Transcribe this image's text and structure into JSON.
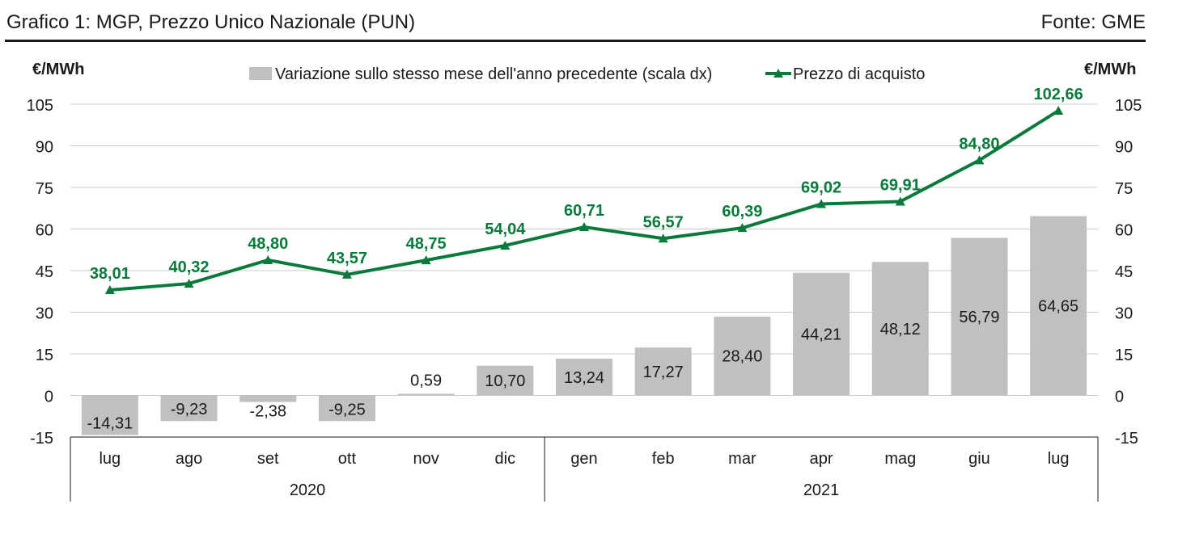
{
  "header": {
    "title": "Grafico 1: MGP, Prezzo Unico Nazionale (PUN)",
    "source": "Fonte: GME"
  },
  "chart_data": {
    "type": "bar",
    "categories": [
      "lug",
      "ago",
      "set",
      "ott",
      "nov",
      "dic",
      "gen",
      "feb",
      "mar",
      "apr",
      "mag",
      "giu",
      "lug"
    ],
    "groups": [
      {
        "label": "2020",
        "from": 0,
        "to": 5
      },
      {
        "label": "2021",
        "from": 6,
        "to": 12
      }
    ],
    "series": [
      {
        "name": "Variazione sullo stesso mese dell'anno precedente (scala dx)",
        "type": "bar",
        "axis": "right",
        "color": "#bfc0c2",
        "values": [
          -14.31,
          -9.23,
          -2.38,
          -9.25,
          0.59,
          10.7,
          13.24,
          17.27,
          28.4,
          44.21,
          48.12,
          56.79,
          64.65
        ],
        "labels": [
          "-14,31",
          "-9,23",
          "-2,38",
          "-9,25",
          "0,59",
          "10,70",
          "13,24",
          "17,27",
          "28,40",
          "44,21",
          "48,12",
          "56,79",
          "64,65"
        ]
      },
      {
        "name": "Prezzo di acquisto",
        "type": "line",
        "axis": "left",
        "color": "#0a7a3c",
        "marker": "triangle",
        "values": [
          38.01,
          40.32,
          48.8,
          43.57,
          48.75,
          54.04,
          60.71,
          56.57,
          60.39,
          69.02,
          69.91,
          84.8,
          102.66
        ],
        "labels": [
          "38,01",
          "40,32",
          "48,80",
          "43,57",
          "48,75",
          "54,04",
          "60,71",
          "56,57",
          "60,39",
          "69,02",
          "69,91",
          "84,80",
          "102,66"
        ]
      }
    ],
    "ylabel": "€/MWh",
    "y2label": "€/MWh",
    "ylim": [
      -15,
      105
    ],
    "y2lim": [
      -15,
      105
    ],
    "yticks": [
      -15,
      0,
      15,
      30,
      45,
      60,
      75,
      90,
      105
    ],
    "ytick_labels": [
      "-15",
      "0",
      "15",
      "30",
      "45",
      "60",
      "75",
      "90",
      "105"
    ],
    "grid": true,
    "legend": "top"
  }
}
